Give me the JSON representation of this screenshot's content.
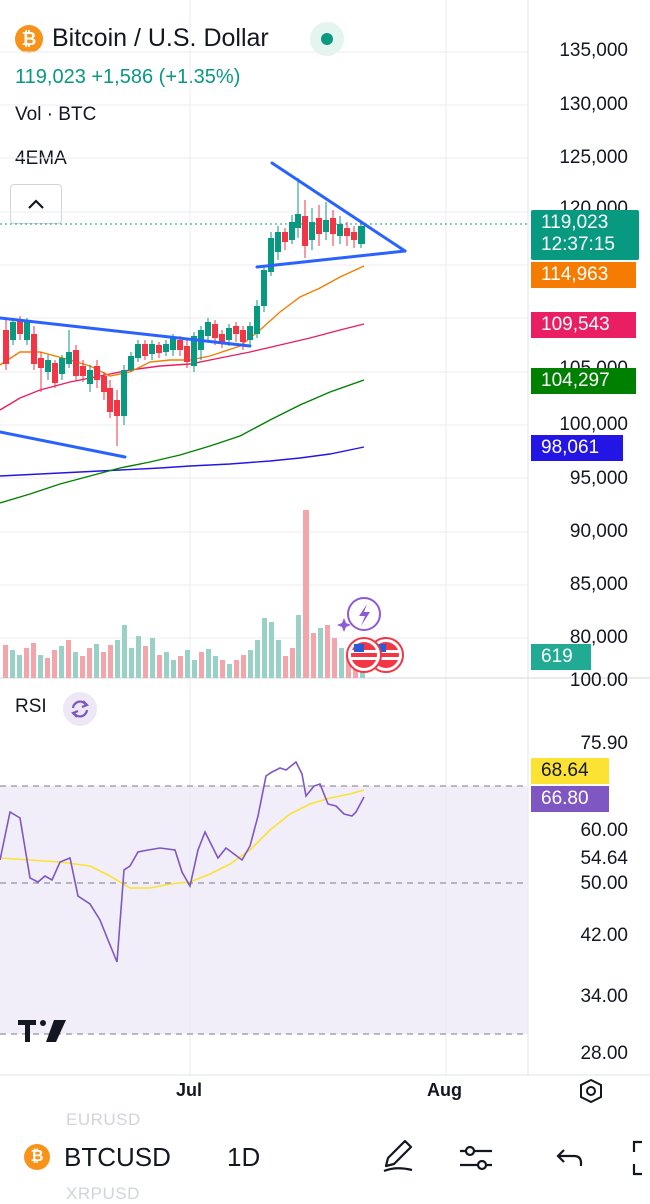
{
  "header": {
    "coin_glyph": "₿",
    "title": "Bitcoin / U.S. Dollar",
    "quote": "119,023 +1,586 (+1.35%)",
    "indicators": [
      "Vol · BTC",
      "4EMA"
    ]
  },
  "price_axis": {
    "ticks": [
      "135,000",
      "130,000",
      "125,000",
      "120,000",
      "105,000",
      "100,000",
      "95,000",
      "90,000",
      "85,000",
      "80,000",
      "100.00"
    ]
  },
  "price_tags": {
    "last_price": "119,023",
    "countdown": "12:37:15",
    "ema_1": "114,963",
    "ema_2": "109,543",
    "ema_3": "104,297",
    "ema_4": "98,061",
    "volume": "619"
  },
  "rsi": {
    "label": "RSI",
    "ticks": [
      "75.90",
      "60.00",
      "54.64",
      "50.00",
      "42.00",
      "34.00",
      "28.00"
    ],
    "value_ma": "68.64",
    "value_rsi": "66.80"
  },
  "time_axis": {
    "months": [
      "Jul",
      "Aug"
    ]
  },
  "bottom_bar": {
    "symbol": "BTCUSD",
    "interval": "1D",
    "ghost_top": "EURUSD",
    "ghost_bottom": "XRPUSD"
  },
  "colors": {
    "up": "#089981",
    "down": "#f23645",
    "vol_up": "#99d1c6",
    "vol_down": "#f2a6ab",
    "ema1": "#f57c00",
    "ema2": "#e91e63",
    "ema3": "#008000",
    "ema4": "#2315e6",
    "rsi_line": "#7e57c2",
    "rsi_ma": "#fbe233",
    "trend": "#2962ff"
  }
}
